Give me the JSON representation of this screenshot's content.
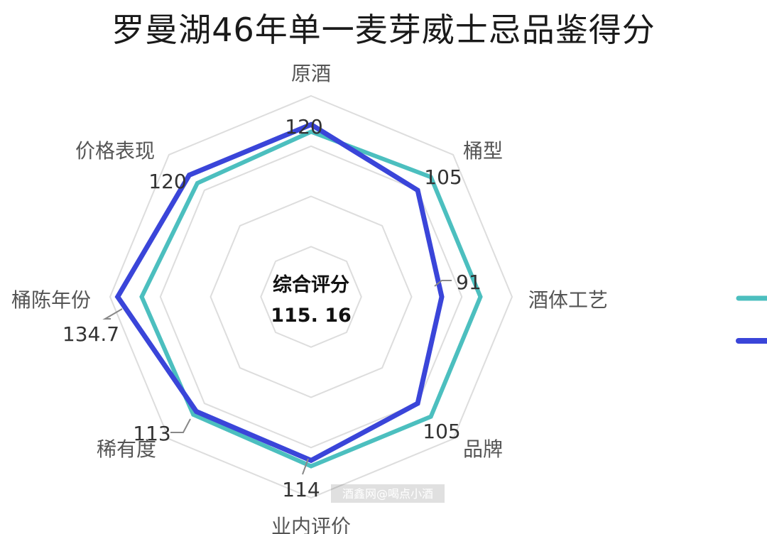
{
  "chart_data": {
    "type": "radar",
    "title": "罗曼湖46年单一麦芽威士忌品鉴得分",
    "axes": [
      "原酒",
      "桶型",
      "酒体工艺",
      "品牌",
      "业内评价",
      "稀有度",
      "桶陈年份",
      "价格表现"
    ],
    "value_labels": [
      "120",
      "105",
      "91",
      "105",
      "114",
      "113",
      "134.7",
      "120"
    ],
    "range": [
      0,
      140
    ],
    "grid_levels": 4,
    "series": [
      {
        "values": [
          115,
          118,
          118,
          118,
          118,
          116,
          118,
          112
        ],
        "color": "#4cbfbf"
      },
      {
        "values": [
          120,
          105,
          91,
          105,
          114,
          113,
          134.7,
          120
        ],
        "color": "#3a45d9"
      }
    ],
    "center": {
      "line1": "综合评分",
      "line2": "115. 16"
    }
  },
  "watermark": "酒鑫网@喝点小酒"
}
